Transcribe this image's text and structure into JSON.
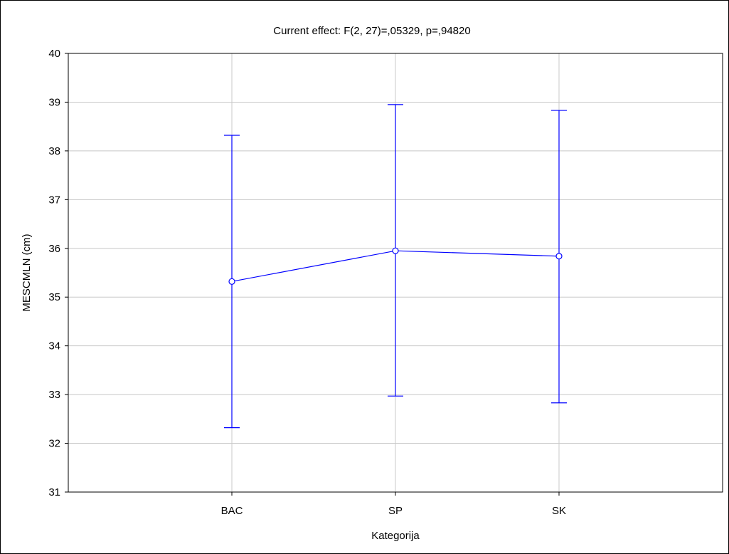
{
  "chart_data": {
    "type": "line",
    "title": "Current effect: F(2, 27)=,05329, p=,94820",
    "xlabel": "Kategorija",
    "ylabel": "MESCMLN (cm)",
    "categories": [
      "BAC",
      "SP",
      "SK"
    ],
    "series": [
      {
        "values": [
          35.32,
          35.95,
          35.84
        ],
        "error_low": [
          32.32,
          32.97,
          32.83
        ],
        "error_high": [
          38.32,
          38.95,
          38.83
        ]
      }
    ],
    "ylim": [
      31,
      40
    ],
    "yticks": [
      "31",
      "32",
      "33",
      "34",
      "35",
      "36",
      "37",
      "38",
      "39",
      "40"
    ],
    "grid": true,
    "colors": {
      "series": "#0000ff",
      "grid": "#c8c8c8",
      "axis": "#000000"
    }
  }
}
